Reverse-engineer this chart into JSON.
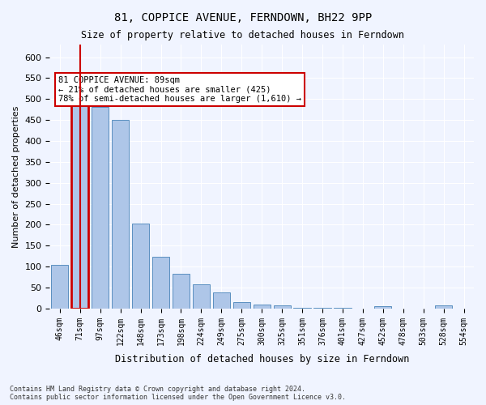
{
  "title": "81, COPPICE AVENUE, FERNDOWN, BH22 9PP",
  "subtitle": "Size of property relative to detached houses in Ferndown",
  "xlabel": "Distribution of detached houses by size in Ferndown",
  "ylabel": "Number of detached properties",
  "categories": [
    "46sqm",
    "71sqm",
    "97sqm",
    "122sqm",
    "148sqm",
    "173sqm",
    "198sqm",
    "224sqm",
    "249sqm",
    "275sqm",
    "300sqm",
    "325sqm",
    "351sqm",
    "376sqm",
    "401sqm",
    "427sqm",
    "452sqm",
    "478sqm",
    "503sqm",
    "528sqm",
    "554sqm"
  ],
  "values": [
    105,
    485,
    482,
    450,
    202,
    123,
    83,
    57,
    38,
    15,
    10,
    8,
    1,
    1,
    1,
    0,
    5,
    0,
    0,
    8,
    0
  ],
  "bar_color": "#aec6e8",
  "bar_edge_color": "#5a8fc0",
  "highlight_bar_index": 1,
  "highlight_color": "#cc0000",
  "annotation_text": "81 COPPICE AVENUE: 89sqm\n← 21% of detached houses are smaller (425)\n78% of semi-detached houses are larger (1,610) →",
  "annotation_box_color": "#ffffff",
  "annotation_box_edge": "#cc0000",
  "footer": "Contains HM Land Registry data © Crown copyright and database right 2024.\nContains public sector information licensed under the Open Government Licence v3.0.",
  "ylim": [
    0,
    630
  ],
  "background_color": "#f0f4ff",
  "grid_color": "#ffffff"
}
